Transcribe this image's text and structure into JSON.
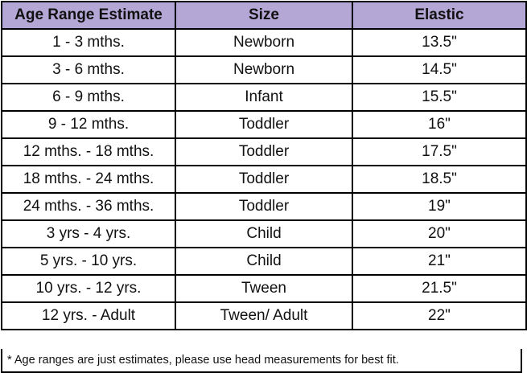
{
  "table": {
    "headers": [
      "Age Range Estimate",
      "Size",
      "Elastic"
    ],
    "rows": [
      [
        "1 - 3 mths.",
        "Newborn",
        "13.5\""
      ],
      [
        "3 - 6 mths.",
        "Newborn",
        "14.5\""
      ],
      [
        "6 - 9 mths.",
        "Infant",
        "15.5\""
      ],
      [
        "9 - 12 mths.",
        "Toddler",
        "16\""
      ],
      [
        "12 mths. - 18 mths.",
        "Toddler",
        "17.5\""
      ],
      [
        "18 mths. - 24 mths.",
        "Toddler",
        "18.5\""
      ],
      [
        "24 mths. - 36 mths.",
        "Toddler",
        "19\""
      ],
      [
        "3 yrs - 4 yrs.",
        "Child",
        "20\""
      ],
      [
        "5 yrs. - 10 yrs.",
        "Child",
        "21\""
      ],
      [
        "10 yrs. - 12 yrs.",
        "Tween",
        "21.5\""
      ],
      [
        "12 yrs. - Adult",
        "Tween/ Adult",
        "22\""
      ]
    ],
    "header_color": "#b4a7d6"
  },
  "footnote": "* Age ranges are just estimates, please use head measurements for best fit."
}
